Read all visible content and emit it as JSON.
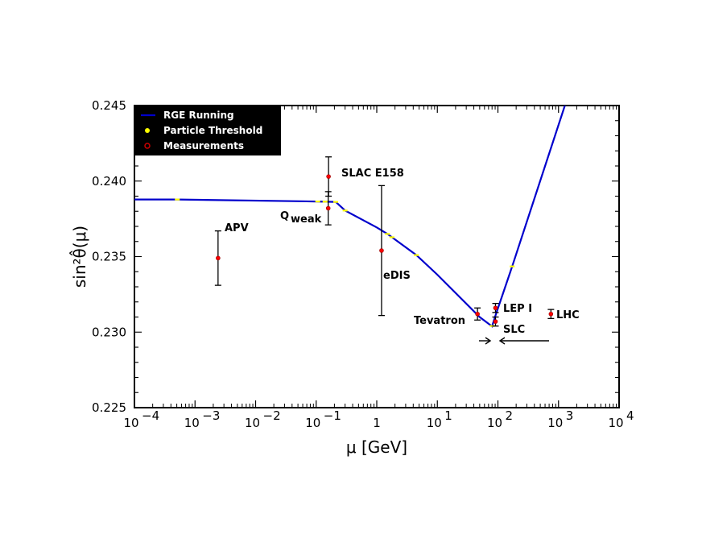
{
  "chart_data": {
    "type": "line",
    "xscale": "log",
    "xlim": [
      0.0001,
      10000
    ],
    "ylim": [
      0.225,
      0.245
    ],
    "xlabel": "μ [GeV]",
    "ylabel": "sin²θ̂(μ)",
    "x_tick_values": [
      0.0001,
      0.001,
      0.01,
      0.1,
      1,
      10,
      100,
      1000,
      10000
    ],
    "x_ticks": [
      {
        "base": "10",
        "exp": "−4"
      },
      {
        "base": "10",
        "exp": "−3"
      },
      {
        "base": "10",
        "exp": "−2"
      },
      {
        "base": "10",
        "exp": "−1"
      },
      {
        "base": "1",
        "exp": ""
      },
      {
        "base": "10",
        "exp": "1"
      },
      {
        "base": "10",
        "exp": "2"
      },
      {
        "base": "10",
        "exp": "3"
      },
      {
        "base": "10",
        "exp": "4"
      }
    ],
    "y_ticks": [
      "0.225",
      "0.230",
      "0.235",
      "0.240",
      "0.245"
    ],
    "y_tick_values": [
      0.225,
      0.23,
      0.235,
      0.24,
      0.245
    ],
    "legend": {
      "placement": "top-left",
      "entries": [
        {
          "label": "RGE Running",
          "marker": "line",
          "color": "#0000cc"
        },
        {
          "label": "Particle Threshold",
          "marker": "dot",
          "color": "#ffff00"
        },
        {
          "label": "Measurements",
          "marker": "ring",
          "color": "#cc0000"
        }
      ]
    },
    "series": [
      {
        "name": "RGE Running",
        "color": "#0000cc",
        "points": [
          [
            0.0001,
            0.23878
          ],
          [
            0.00051,
            0.23878
          ],
          [
            0.1,
            0.23865
          ],
          [
            0.21,
            0.23862
          ],
          [
            0.3,
            0.23805
          ],
          [
            1.0,
            0.23693
          ],
          [
            1.5,
            0.2365
          ],
          [
            4.5,
            0.2351
          ],
          [
            10,
            0.2338
          ],
          [
            50,
            0.231
          ],
          [
            80,
            0.23038
          ],
          [
            91.2,
            0.2311
          ],
          [
            172,
            0.23435
          ],
          [
            1300,
            0.2451
          ]
        ]
      }
    ],
    "thresholds": {
      "name": "Particle Threshold",
      "color": "#ffff00",
      "x": [
        0.00051,
        0.106,
        0.14,
        0.21,
        0.3,
        1.5,
        1.78,
        4.5,
        80.4,
        172
      ]
    },
    "measurements": [
      {
        "name": "APV",
        "x": 0.0024,
        "y": 0.2349,
        "err_low": 0.0018,
        "err_high": 0.0018
      },
      {
        "name": "Qweak",
        "x": 0.158,
        "y": 0.2382,
        "err_low": 0.0011,
        "err_high": 0.0011
      },
      {
        "name": "SLAC E158",
        "x": 0.16,
        "y": 0.2403,
        "err_low": 0.0013,
        "err_high": 0.0013
      },
      {
        "name": "eDIS",
        "x": 1.2,
        "y": 0.2354,
        "err_low": 0.0043,
        "err_high": 0.0043
      },
      {
        "name": "Tevatron",
        "x": 46,
        "y": 0.2312,
        "err_low": 0.0004,
        "err_high": 0.0004
      },
      {
        "name": "LEP I",
        "x": 91.2,
        "y": 0.2316,
        "err_low": 0.0003,
        "err_high": 0.0003
      },
      {
        "name": "SLC",
        "x": 91.2,
        "y": 0.2307,
        "err_low": 0.0003,
        "err_high": 0.0003
      },
      {
        "name": "LHC",
        "x": 750,
        "y": 0.2312,
        "err_low": 0.0003,
        "err_high": 0.0003
      }
    ],
    "labels": {
      "apv": "APV",
      "qweak_main": "Q",
      "qweak_sub": "weak",
      "slac": "SLAC E158",
      "edis": "eDIS",
      "tevatron": "Tevatron",
      "lep": "LEP I",
      "slc": "SLC",
      "lhc": "LHC"
    },
    "grid": false
  }
}
